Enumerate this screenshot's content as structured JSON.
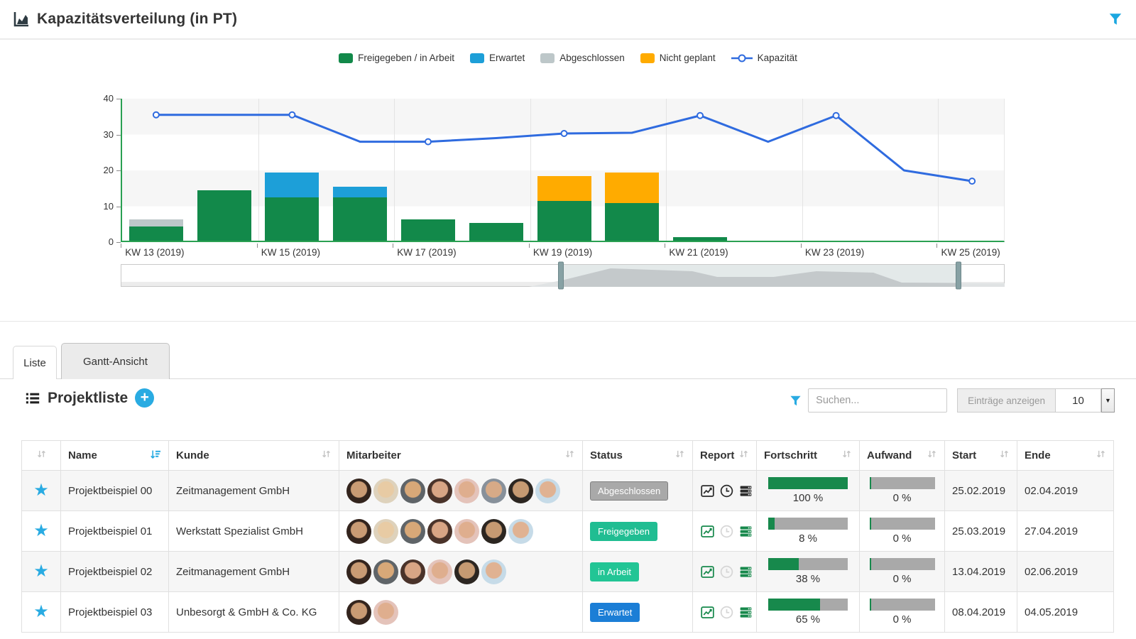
{
  "titlebar": {
    "title": "Kapazitätsverteilung (in PT)"
  },
  "chart_data": {
    "type": "bar",
    "subtype": "stacked-bars-with-line",
    "categories": [
      "KW 13 (2019)",
      "KW 14 (2019)",
      "KW 15 (2019)",
      "KW 16 (2019)",
      "KW 17 (2019)",
      "KW 18 (2019)",
      "KW 19 (2019)",
      "KW 20 (2019)",
      "KW 21 (2019)",
      "KW 22 (2019)",
      "KW 23 (2019)",
      "KW 24 (2019)",
      "KW 25 (2019)"
    ],
    "label_every": 2,
    "ylim": [
      0,
      40
    ],
    "yticks": [
      0,
      10,
      20,
      30,
      40
    ],
    "axis_color": "#2aa052",
    "series": [
      {
        "name": "Freigegeben / in Arbeit",
        "type": "bar",
        "color": "#12894a",
        "values": [
          4,
          14,
          12,
          12,
          6,
          5,
          11,
          10.5,
          1,
          0,
          0,
          0,
          0
        ]
      },
      {
        "name": "Erwartet",
        "type": "bar",
        "color": "#1d9fd8",
        "values": [
          0,
          0,
          7,
          3,
          0,
          0,
          0,
          0,
          0,
          0,
          0,
          0,
          0
        ]
      },
      {
        "name": "Nicht geplant",
        "type": "bar",
        "color": "#ffab00",
        "values": [
          0,
          0,
          0,
          0,
          0,
          0,
          7,
          8.5,
          0,
          0,
          0,
          0,
          0
        ]
      },
      {
        "name": "Abgeschlossen",
        "type": "bar",
        "color": "#bdc7c9",
        "values": [
          2,
          0,
          0,
          0,
          0,
          0,
          0,
          0,
          0,
          0,
          0,
          0,
          0
        ]
      },
      {
        "name": "Kapazität",
        "type": "line",
        "color": "#2f6bdf",
        "values": [
          35.5,
          35.5,
          35.5,
          28,
          28,
          29,
          30.3,
          30.5,
          35.3,
          28,
          35.3,
          20,
          17
        ]
      }
    ],
    "legend": [
      {
        "label": "Freigegeben / in Arbeit",
        "color": "#12894a",
        "marker": "box"
      },
      {
        "label": "Erwartet",
        "color": "#1d9fd8",
        "marker": "box"
      },
      {
        "label": "Abgeschlossen",
        "color": "#bdc7c9",
        "marker": "box"
      },
      {
        "label": "Nicht geplant",
        "color": "#ffab00",
        "marker": "box"
      },
      {
        "label": "Kapazität",
        "color": "#2f6bdf",
        "marker": "line"
      }
    ],
    "legend_position": "top-center",
    "grid": true
  },
  "tabs": [
    {
      "label": "Liste",
      "active": true
    },
    {
      "label": "Gantt-Ansicht",
      "active": false
    }
  ],
  "list_panel": {
    "title": "Projektliste",
    "search_placeholder": "Suchen...",
    "entries_label": "Einträge anzeigen",
    "entries_value": "10",
    "accent_color": "#29abe2",
    "progress_fill": "#17894c",
    "progress_track": "#a9a9a9",
    "columns": [
      "",
      "Name",
      "Kunde",
      "Mitarbeiter",
      "Status",
      "Report",
      "Fortschritt",
      "Aufwand",
      "Start",
      "Ende"
    ],
    "sorted_column": "Name",
    "rows": [
      {
        "name": "Projektbeispiel 00",
        "kunde": "Zeitmanagement GmbH",
        "avatars": [
          "av1",
          "av2",
          "av3",
          "av4",
          "av5",
          "av6",
          "av7",
          "av8"
        ],
        "status": "Abgeschlossen",
        "status_color": "#a9a9a9",
        "status_border": "#7f7f7f",
        "report_active": false,
        "fortschritt": "100 %",
        "fortschritt_pct": 100,
        "aufwand": "0 %",
        "aufwand_pct": 0,
        "start": "25.02.2019",
        "ende": "02.04.2019"
      },
      {
        "name": "Projektbeispiel 01",
        "kunde": "Werkstatt Spezialist GmbH",
        "avatars": [
          "av1",
          "av2",
          "av3",
          "av4",
          "av5",
          "av7",
          "av8"
        ],
        "status": "Freigegeben",
        "status_color": "#20bd92",
        "status_border": "#20bd92",
        "report_active": true,
        "fortschritt": "8 %",
        "fortschritt_pct": 8,
        "aufwand": "0 %",
        "aufwand_pct": 0,
        "start": "25.03.2019",
        "ende": "27.04.2019"
      },
      {
        "name": "Projektbeispiel 02",
        "kunde": "Zeitmanagement GmbH",
        "avatars": [
          "av1",
          "av3",
          "av4",
          "av5",
          "av7",
          "av8"
        ],
        "status": "in Arbeit",
        "status_color": "#22c595",
        "status_border": "#22c595",
        "report_active": true,
        "fortschritt": "38 %",
        "fortschritt_pct": 38,
        "aufwand": "0 %",
        "aufwand_pct": 0,
        "start": "13.04.2019",
        "ende": "02.06.2019"
      },
      {
        "name": "Projektbeispiel 03",
        "kunde": "Unbesorgt & GmbH & Co. KG",
        "avatars": [
          "av1",
          "av5"
        ],
        "status": "Erwartet",
        "status_color": "#1b7ed6",
        "status_border": "#1b7ed6",
        "report_active": true,
        "fortschritt": "65 %",
        "fortschritt_pct": 65,
        "aufwand": "0 %",
        "aufwand_pct": 0,
        "start": "08.04.2019",
        "ende": "04.05.2019"
      }
    ]
  }
}
